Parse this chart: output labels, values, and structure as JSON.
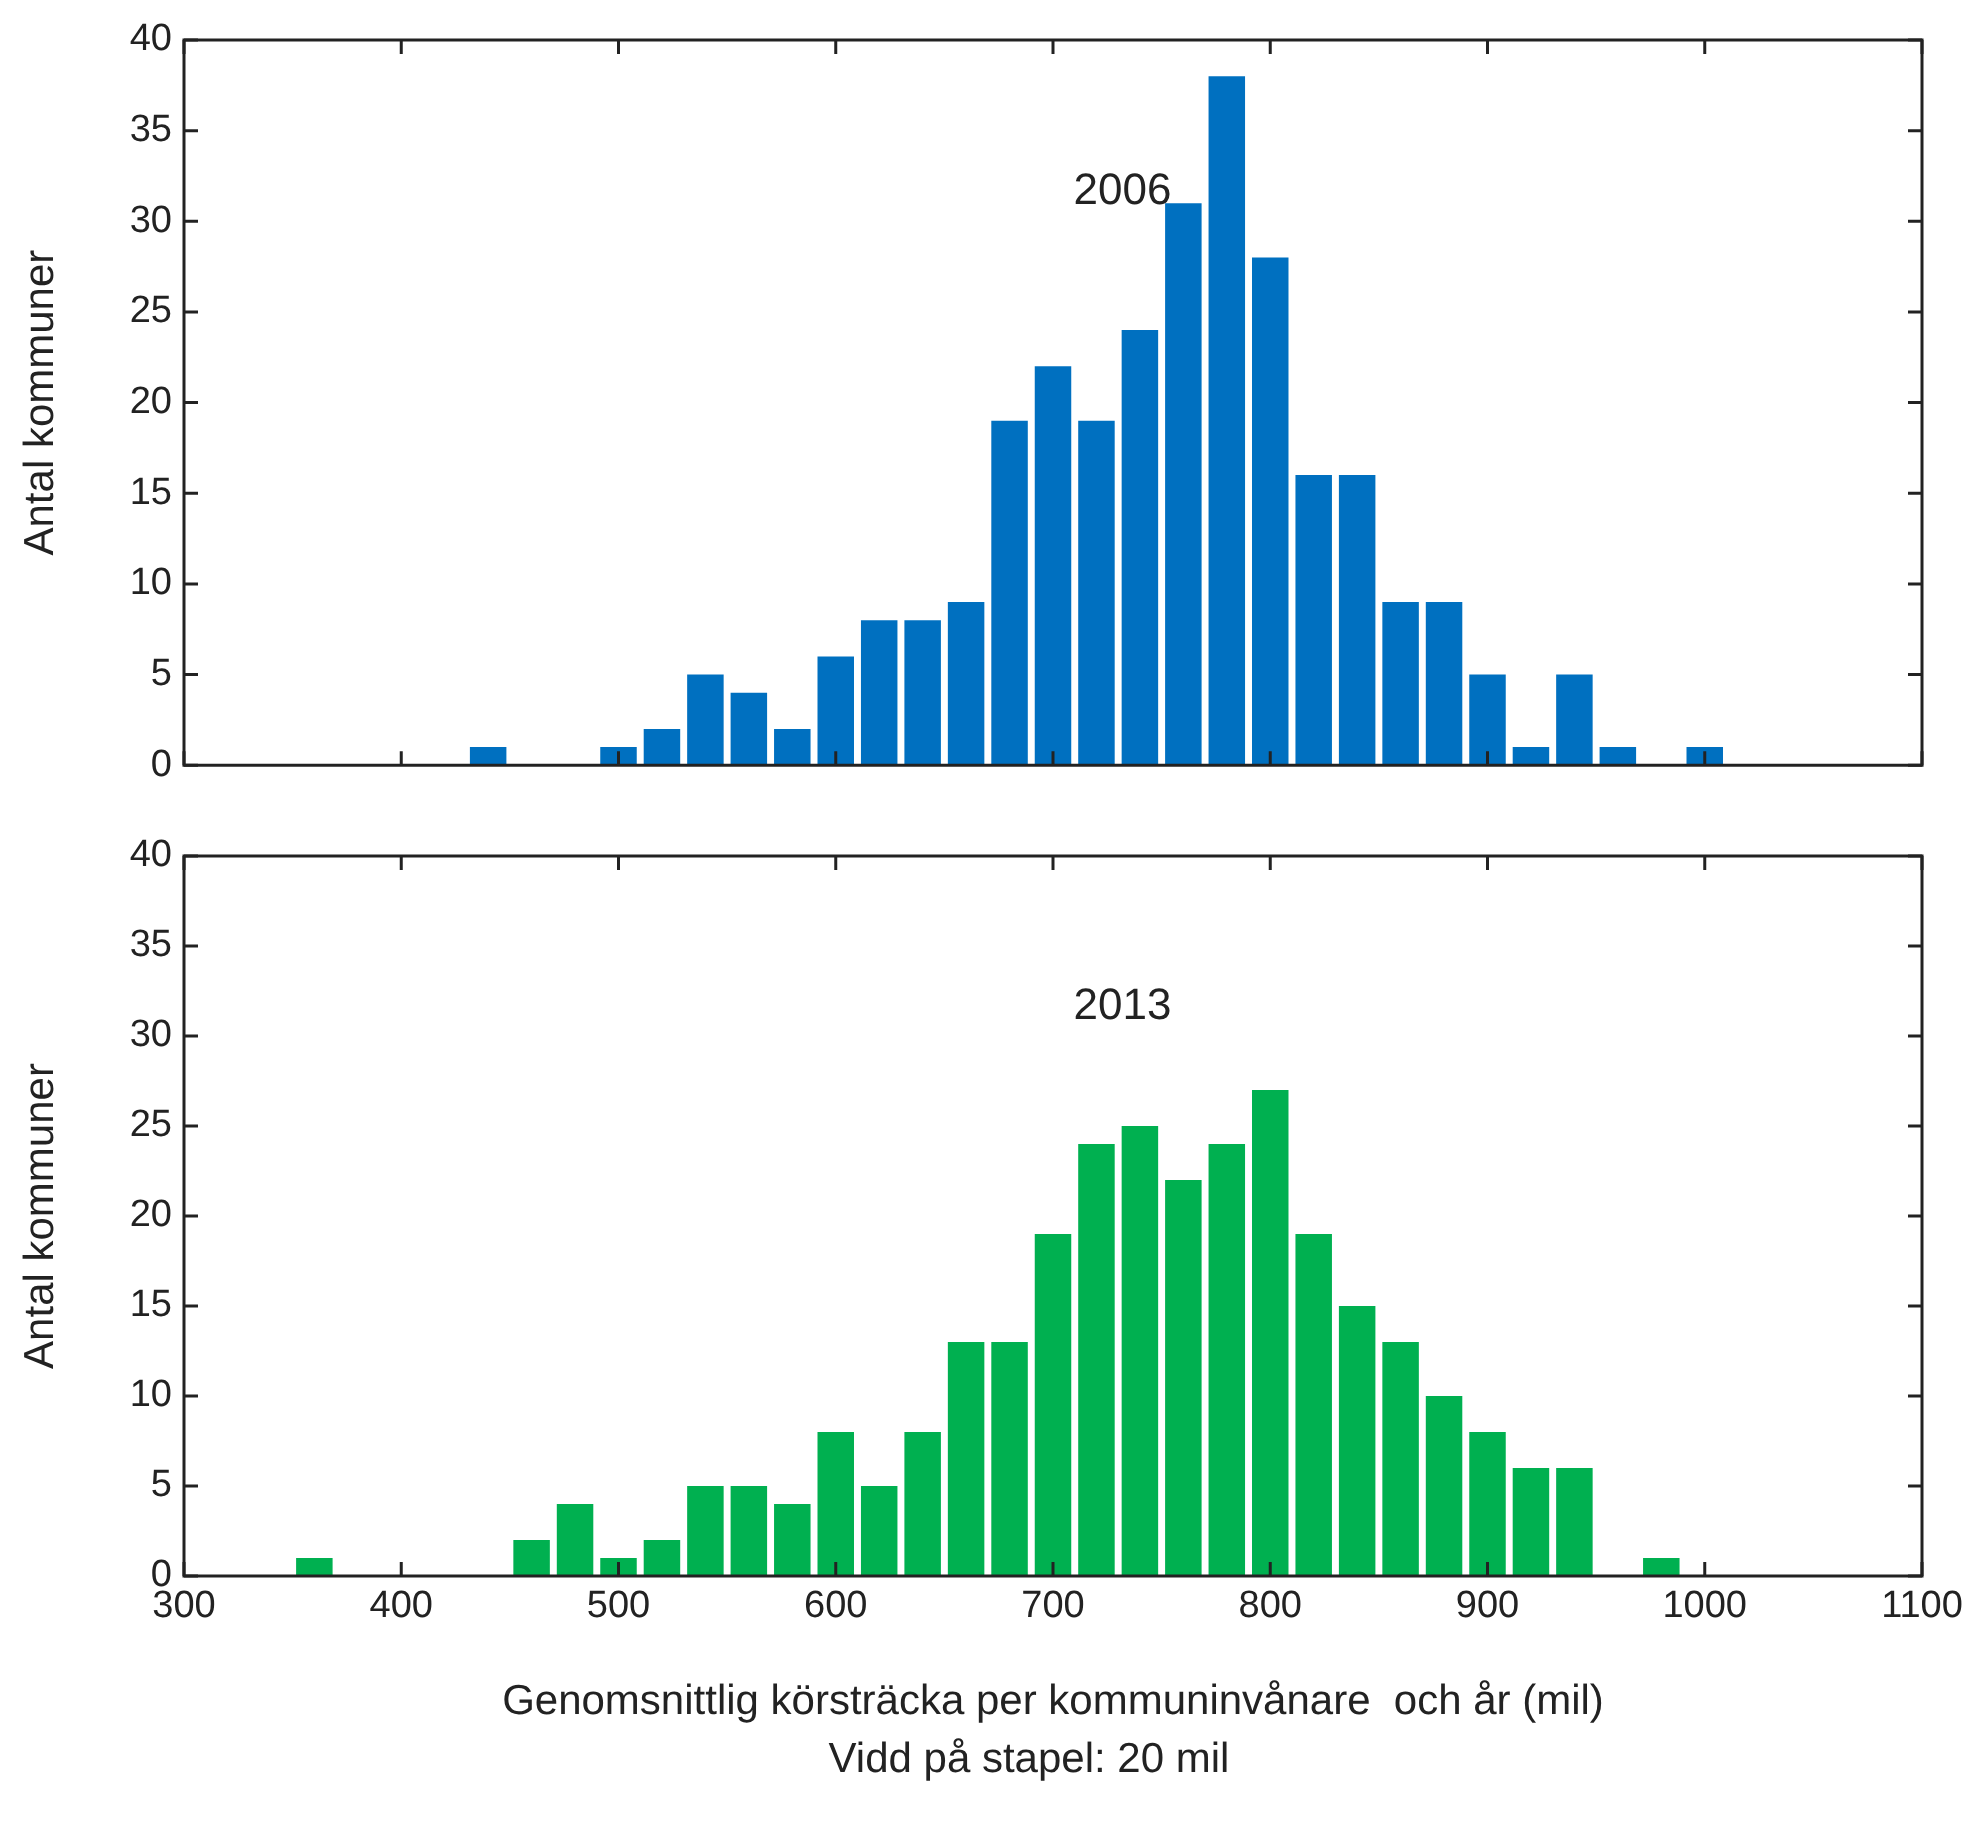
{
  "chart_data": [
    {
      "type": "histogram",
      "ylabel": "Antal kommuner",
      "color": "#0070c0",
      "bins": [
        430,
        450,
        470,
        490,
        510,
        530,
        550,
        570,
        590,
        610,
        630,
        650,
        670,
        690,
        710,
        730,
        750,
        770,
        790,
        810,
        830,
        850,
        870,
        890,
        910,
        930,
        950,
        970,
        990,
        1010
      ],
      "values": [
        1,
        0,
        0,
        1,
        2,
        5,
        4,
        2,
        6,
        8,
        8,
        9,
        19,
        22,
        19,
        24,
        31,
        38,
        28,
        16,
        16,
        9,
        9,
        5,
        1,
        5,
        1,
        0,
        1
      ],
      "xlim": [
        300,
        1100
      ],
      "xticks": [
        300,
        400,
        500,
        600,
        700,
        800,
        900,
        1000,
        1100
      ],
      "ylim": [
        0,
        40
      ],
      "yticks": [
        0,
        5,
        10,
        15,
        20,
        25,
        30,
        35,
        40
      ],
      "tick_labels": "y",
      "annotations": [
        "2006"
      ]
    },
    {
      "type": "histogram",
      "ylabel": "Antal kommuner",
      "xlabel": "Genomsnittlig körsträcka per kommuninvånare  och år (mil)",
      "color": "#00b050",
      "bins": [
        350,
        370,
        390,
        410,
        430,
        450,
        470,
        490,
        510,
        530,
        550,
        570,
        590,
        610,
        630,
        650,
        670,
        690,
        710,
        730,
        750,
        770,
        790,
        810,
        830,
        850,
        870,
        890,
        910,
        930,
        950,
        970,
        990
      ],
      "values": [
        1,
        0,
        0,
        0,
        0,
        2,
        4,
        1,
        2,
        5,
        5,
        4,
        8,
        5,
        8,
        13,
        13,
        19,
        24,
        25,
        22,
        24,
        27,
        19,
        15,
        13,
        10,
        8,
        6,
        6,
        0,
        1
      ],
      "xlim": [
        300,
        1100
      ],
      "xticks": [
        300,
        400,
        500,
        600,
        700,
        800,
        900,
        1000,
        1100
      ],
      "ylim": [
        0,
        40
      ],
      "yticks": [
        0,
        5,
        10,
        15,
        20,
        25,
        30,
        35,
        40
      ],
      "annotations": [
        "2013",
        "Vidd på stapel: 20 mil"
      ]
    }
  ]
}
